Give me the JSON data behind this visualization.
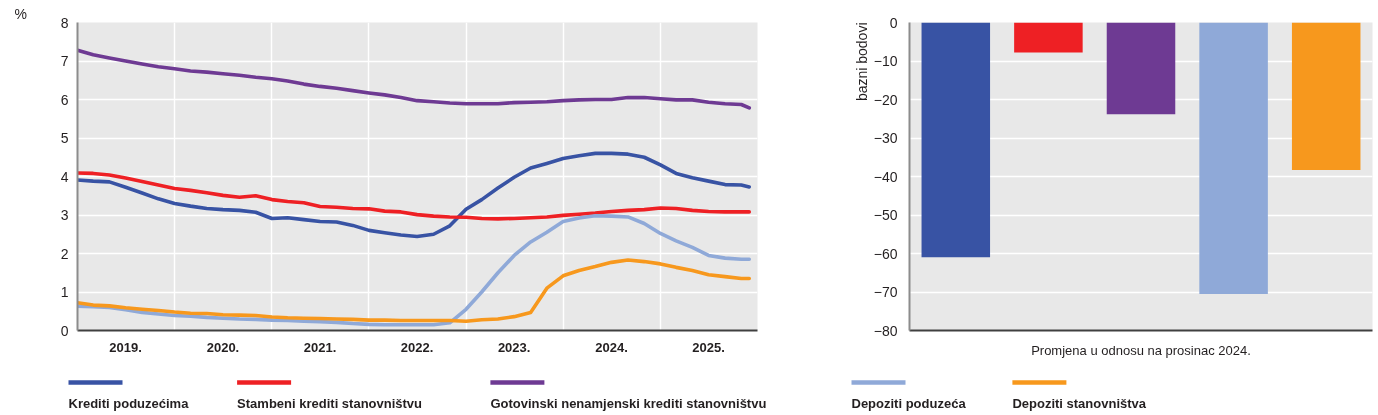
{
  "chart_data": [
    {
      "type": "line",
      "ylabel": "%",
      "xlim": [
        "2019-01",
        "2026-01"
      ],
      "ylim": [
        0,
        8
      ],
      "yticks": [
        0,
        1,
        2,
        3,
        4,
        5,
        6,
        7,
        8
      ],
      "xticks": [
        {
          "value": "2019-07",
          "label": "2019."
        },
        {
          "value": "2020-01",
          "label": null
        },
        {
          "value": "2020-07",
          "label": "2020."
        },
        {
          "value": "2021-01",
          "label": null
        },
        {
          "value": "2021-07",
          "label": "2021."
        },
        {
          "value": "2022-01",
          "label": null
        },
        {
          "value": "2022-07",
          "label": "2022."
        },
        {
          "value": "2023-01",
          "label": null
        },
        {
          "value": "2023-07",
          "label": "2023."
        },
        {
          "value": "2024-01",
          "label": null
        },
        {
          "value": "2024-07",
          "label": "2024."
        },
        {
          "value": "2025-01",
          "label": null
        },
        {
          "value": "2025-07",
          "label": "2025."
        }
      ],
      "grid": true,
      "legend": "bottom",
      "x": [
        "2019-01",
        "2019-03",
        "2019-05",
        "2019-07",
        "2019-09",
        "2019-11",
        "2020-01",
        "2020-03",
        "2020-05",
        "2020-07",
        "2020-09",
        "2020-11",
        "2021-01",
        "2021-03",
        "2021-05",
        "2021-07",
        "2021-09",
        "2021-11",
        "2022-01",
        "2022-03",
        "2022-05",
        "2022-07",
        "2022-09",
        "2022-11",
        "2023-01",
        "2023-03",
        "2023-05",
        "2023-07",
        "2023-09",
        "2023-11",
        "2024-01",
        "2024-03",
        "2024-05",
        "2024-07",
        "2024-09",
        "2024-11",
        "2025-01",
        "2025-03",
        "2025-05",
        "2025-07",
        "2025-09",
        "2025-11",
        "2025-12"
      ],
      "series": [
        {
          "name": "Krediti poduzećima",
          "color": "#3853a4",
          "values": [
            3.91,
            3.88,
            3.86,
            3.72,
            3.57,
            3.42,
            3.3,
            3.23,
            3.17,
            3.14,
            3.12,
            3.07,
            2.91,
            2.93,
            2.88,
            2.83,
            2.82,
            2.73,
            2.6,
            2.54,
            2.48,
            2.44,
            2.5,
            2.72,
            3.15,
            3.4,
            3.7,
            3.98,
            4.22,
            4.34,
            4.47,
            4.54,
            4.6,
            4.6,
            4.58,
            4.5,
            4.3,
            4.08,
            3.97,
            3.88,
            3.79,
            3.78,
            3.73
          ]
        },
        {
          "name": "Stambeni krediti stanovništvu",
          "color": "#ee2024",
          "values": [
            4.09,
            4.08,
            4.04,
            3.96,
            3.87,
            3.78,
            3.69,
            3.64,
            3.58,
            3.51,
            3.46,
            3.5,
            3.4,
            3.35,
            3.32,
            3.22,
            3.2,
            3.17,
            3.16,
            3.1,
            3.08,
            3.01,
            2.97,
            2.95,
            2.94,
            2.91,
            2.9,
            2.91,
            2.93,
            2.95,
            2.99,
            3.02,
            3.05,
            3.09,
            3.12,
            3.14,
            3.18,
            3.17,
            3.12,
            3.09,
            3.08,
            3.08,
            3.08
          ]
        },
        {
          "name": "Gotovinski nenamjenski krediti stanovništvu",
          "color": "#6e3a93",
          "values": [
            7.28,
            7.16,
            7.08,
            7.0,
            6.92,
            6.85,
            6.8,
            6.74,
            6.71,
            6.67,
            6.63,
            6.58,
            6.54,
            6.48,
            6.4,
            6.34,
            6.29,
            6.23,
            6.17,
            6.12,
            6.05,
            5.97,
            5.94,
            5.91,
            5.89,
            5.89,
            5.89,
            5.92,
            5.93,
            5.94,
            5.97,
            5.99,
            6.0,
            6.0,
            6.05,
            6.05,
            6.02,
            5.99,
            5.99,
            5.93,
            5.89,
            5.87,
            5.78
          ]
        },
        {
          "name": "Depoziti poduzeća",
          "color": "#8fa9d8",
          "values": [
            0.63,
            0.62,
            0.6,
            0.54,
            0.47,
            0.43,
            0.39,
            0.37,
            0.34,
            0.32,
            0.3,
            0.29,
            0.27,
            0.26,
            0.24,
            0.23,
            0.21,
            0.18,
            0.16,
            0.15,
            0.15,
            0.15,
            0.15,
            0.2,
            0.55,
            1.0,
            1.5,
            1.95,
            2.3,
            2.55,
            2.83,
            2.92,
            2.98,
            2.97,
            2.95,
            2.78,
            2.52,
            2.33,
            2.16,
            1.95,
            1.88,
            1.85,
            1.85
          ]
        },
        {
          "name": "Depoziti stanovništva",
          "color": "#f7981d",
          "values": [
            0.72,
            0.66,
            0.64,
            0.59,
            0.55,
            0.52,
            0.48,
            0.45,
            0.44,
            0.41,
            0.4,
            0.39,
            0.35,
            0.33,
            0.32,
            0.31,
            0.3,
            0.29,
            0.27,
            0.27,
            0.26,
            0.26,
            0.26,
            0.26,
            0.24,
            0.28,
            0.3,
            0.36,
            0.47,
            1.1,
            1.42,
            1.56,
            1.66,
            1.77,
            1.83,
            1.79,
            1.73,
            1.64,
            1.56,
            1.45,
            1.4,
            1.35,
            1.35
          ]
        }
      ]
    },
    {
      "type": "bar",
      "xlabel": "Promjena u odnosu na prosinac 2024.",
      "ylabel": "bazni bodovi",
      "categories": [
        null,
        null,
        null,
        null,
        null
      ],
      "values": [
        -61,
        -7.8,
        -23.8,
        -70.5,
        -38.3
      ],
      "colors": [
        "#3853a4",
        "#ee2024",
        "#6e3a93",
        "#8fa9d8",
        "#f7981d"
      ],
      "ylim": [
        -80,
        0
      ],
      "yticks": [
        {
          "value": 0,
          "label": "0"
        },
        {
          "value": -10,
          "label": "−10"
        },
        {
          "value": -20,
          "label": "−20"
        },
        {
          "value": -30,
          "label": "−30"
        },
        {
          "value": -40,
          "label": "−40"
        },
        {
          "value": -50,
          "label": "−50"
        },
        {
          "value": -60,
          "label": "−60"
        },
        {
          "value": -70,
          "label": "−70"
        },
        {
          "value": -80,
          "label": "−80"
        }
      ],
      "grid": "y"
    }
  ]
}
